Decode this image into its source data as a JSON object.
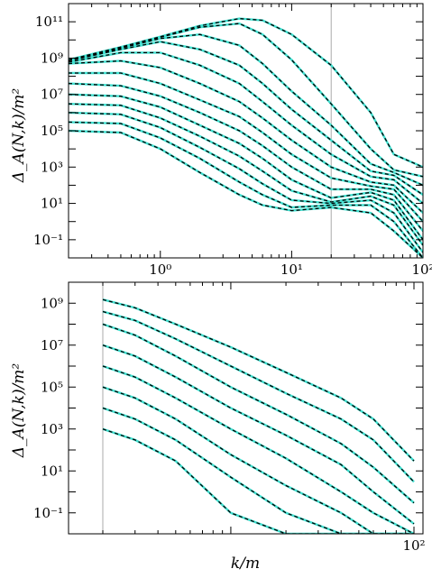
{
  "chart_data": [
    {
      "type": "line",
      "ylabel": "Δ_A(N,k)/m²",
      "xlabel": "",
      "x_scale": "log",
      "y_scale": "log",
      "xlim": [
        0.2,
        100
      ],
      "ylim": [
        0.01,
        1000000000000
      ],
      "x_ticks": [
        1,
        10,
        100
      ],
      "x_tick_labels": [
        "10⁰",
        "10¹",
        "10²"
      ],
      "y_ticks": [
        0.1,
        10,
        1000,
        100000,
        10000000,
        1000000000,
        100000000000
      ],
      "y_tick_labels": [
        "10⁻¹",
        "10¹",
        "10³",
        "10⁵",
        "10⁷",
        "10⁹",
        "10¹¹"
      ],
      "vertical_line_x": 20,
      "colors": {
        "numerical": "#40e0d0",
        "analytic": "#000000",
        "vline": "#aaaaaa"
      },
      "line_styles": {
        "numerical": "solid",
        "analytic": "dashed"
      },
      "series": [
        {
          "x": [
            0.2,
            0.5,
            1,
            2,
            4,
            6,
            10,
            20,
            40,
            60,
            100
          ],
          "y": [
            100000,
            80000,
            10000,
            500,
            30,
            8,
            4,
            6,
            3,
            0.3,
            0.01
          ]
        },
        {
          "x": [
            0.2,
            0.5,
            1,
            2,
            4,
            6,
            10,
            20,
            40,
            60,
            100
          ],
          "y": [
            300000,
            250000,
            40000,
            3000,
            150,
            30,
            6,
            8,
            8,
            1,
            0.01
          ]
        },
        {
          "x": [
            0.2,
            0.5,
            1,
            2,
            4,
            6,
            10,
            20,
            40,
            60,
            100
          ],
          "y": [
            1000000,
            800000,
            150000,
            12000,
            800,
            120,
            15,
            10,
            15,
            3,
            0.02
          ]
        },
        {
          "x": [
            0.2,
            0.5,
            1,
            2,
            4,
            6,
            10,
            20,
            40,
            60,
            100
          ],
          "y": [
            3000000,
            2500000,
            500000,
            50000,
            4000,
            600,
            50,
            12,
            25,
            8,
            0.05
          ]
        },
        {
          "x": [
            0.2,
            0.5,
            1,
            2,
            4,
            6,
            10,
            20,
            40,
            60,
            100
          ],
          "y": [
            10000000,
            8000000,
            2000000,
            200000,
            20000,
            3000,
            200,
            20,
            40,
            15,
            0.1
          ]
        },
        {
          "x": [
            0.2,
            0.5,
            1,
            2,
            4,
            6,
            10,
            20,
            40,
            60,
            100
          ],
          "y": [
            40000000,
            30000000,
            8000000,
            1000000,
            100000,
            15000,
            1000,
            60,
            60,
            30,
            0.3
          ]
        },
        {
          "x": [
            0.2,
            0.5,
            1,
            2,
            4,
            6,
            10,
            20,
            40,
            60,
            100
          ],
          "y": [
            150000000,
            150000000,
            40000000,
            5000000,
            600000,
            80000,
            5000,
            250,
            90,
            60,
            1
          ]
        },
        {
          "x": [
            0.2,
            0.5,
            1,
            2,
            4,
            6,
            10,
            20,
            40,
            60,
            100
          ],
          "y": [
            500000000,
            700000000,
            300000000,
            40000000,
            4000000,
            500000,
            30000,
            1000,
            150,
            100,
            3
          ]
        },
        {
          "x": [
            0.2,
            0.5,
            1,
            2,
            4,
            6,
            10,
            20,
            40,
            60,
            100
          ],
          "y": [
            600000000,
            2000000000,
            2000000000,
            400000000,
            40000000,
            4000000,
            200000,
            5000,
            300,
            200,
            10
          ]
        },
        {
          "x": [
            0.2,
            0.5,
            1,
            2,
            4,
            6,
            10,
            20,
            40,
            60,
            100
          ],
          "y": [
            700000000,
            3000000000,
            8000000000,
            3000000000,
            400000000,
            40000000,
            1500000,
            30000,
            600,
            350,
            30
          ]
        },
        {
          "x": [
            0.2,
            0.5,
            1,
            2,
            4,
            6,
            10,
            20,
            40,
            60,
            100
          ],
          "y": [
            750000000,
            3500000000,
            12000000000,
            20000000000,
            5000000000,
            500000000,
            15000000,
            200000,
            1500,
            500,
            100
          ]
        },
        {
          "x": [
            0.2,
            0.5,
            1,
            2,
            4,
            6,
            10,
            20,
            40,
            60,
            100
          ],
          "y": [
            800000000,
            4000000000,
            14000000000,
            50000000000,
            80000000000,
            20000000000,
            800000000,
            3000000,
            10000,
            700,
            300
          ]
        },
        {
          "x": [
            0.2,
            0.5,
            1,
            2,
            4,
            6,
            10,
            20,
            40,
            60,
            100
          ],
          "y": [
            800000000,
            4000000000,
            15000000000,
            60000000000,
            150000000000,
            120000000000,
            20000000000,
            400000000,
            1000000,
            5000,
            1000
          ]
        }
      ]
    },
    {
      "type": "line",
      "ylabel": "Δ_A(N,k)/m²",
      "xlabel": "k/m",
      "x_scale": "log",
      "y_scale": "log",
      "xlim": [
        1.3,
        112
      ],
      "ylim": [
        0.01,
        10000000000
      ],
      "x_ticks": [
        100
      ],
      "x_tick_labels": [
        "10²"
      ],
      "y_ticks": [
        0.1,
        10,
        1000,
        100000,
        10000000,
        1000000000
      ],
      "y_tick_labels": [
        "10⁻¹",
        "10¹",
        "10³",
        "10⁵",
        "10⁷",
        "10⁹"
      ],
      "vertical_line_x": 2,
      "colors": {
        "numerical": "#40e0d0",
        "analytic": "#000000",
        "vline": "#aaaaaa"
      },
      "line_styles": {
        "numerical": "solid",
        "analytic": "dashed"
      },
      "series": [
        {
          "x": [
            2,
            3,
            5,
            10,
            20,
            40,
            60,
            100
          ],
          "y": [
            1000,
            300,
            30,
            0.1,
            0.01,
            0.01,
            0.01,
            0.01
          ]
        },
        {
          "x": [
            2,
            3,
            5,
            10,
            20,
            40,
            60,
            100
          ],
          "y": [
            10000,
            3000,
            300,
            5,
            0.1,
            0.01,
            0.01,
            0.01
          ]
        },
        {
          "x": [
            2,
            3,
            5,
            10,
            20,
            40,
            60,
            100
          ],
          "y": [
            100000,
            30000,
            3000,
            60,
            2,
            0.1,
            0.01,
            0.01
          ]
        },
        {
          "x": [
            2,
            3,
            5,
            10,
            20,
            40,
            60,
            100
          ],
          "y": [
            1000000,
            300000,
            30000,
            1000,
            40,
            1,
            0.1,
            0.01
          ]
        },
        {
          "x": [
            2,
            3,
            5,
            10,
            20,
            40,
            60,
            100
          ],
          "y": [
            10000000,
            3000000,
            300000,
            10000,
            500,
            20,
            1,
            0.03
          ]
        },
        {
          "x": [
            2,
            3,
            5,
            10,
            20,
            40,
            60,
            100
          ],
          "y": [
            100000000,
            30000000,
            3000000,
            100000,
            5000,
            200,
            15,
            0.3
          ]
        },
        {
          "x": [
            2,
            3,
            5,
            10,
            20,
            40,
            60,
            100
          ],
          "y": [
            400000000,
            150000000,
            20000000,
            1000000,
            50000,
            3000,
            300,
            3
          ]
        },
        {
          "x": [
            2,
            3,
            5,
            10,
            20,
            40,
            60,
            100
          ],
          "y": [
            1500000000,
            600000000,
            100000000,
            8000000,
            500000,
            30000,
            3000,
            30
          ]
        }
      ]
    }
  ]
}
